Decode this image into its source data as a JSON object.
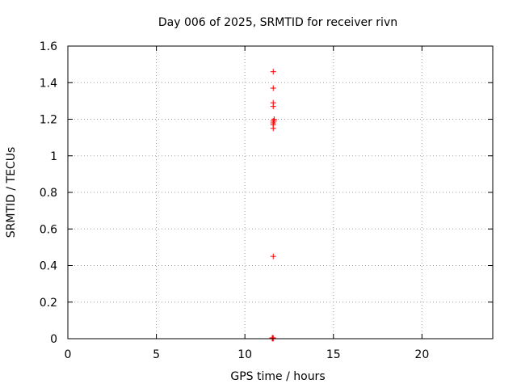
{
  "chart_data": {
    "type": "scatter",
    "title": "Day 006 of 2025, SRMTID for receiver rivn",
    "xlabel": "GPS time / hours",
    "ylabel": "SRMTID / TECUs",
    "xlim": [
      0,
      24
    ],
    "ylim": [
      0,
      1.6
    ],
    "x_ticks": [
      0,
      5,
      10,
      15,
      20
    ],
    "x_tick_labels": [
      "0",
      "5",
      "10",
      "15",
      "20"
    ],
    "y_ticks": [
      0,
      0.2,
      0.4,
      0.6,
      0.8,
      1.0,
      1.2,
      1.4,
      1.6
    ],
    "y_tick_labels": [
      "0",
      "0.2",
      "0.4",
      "0.6",
      "0.8",
      "1",
      "1.2",
      "1.4",
      "1.6"
    ],
    "grid": true,
    "marker": "+",
    "color": "#ff0000",
    "series": [
      {
        "name": "SRMTID",
        "x": [
          11.6,
          11.6,
          11.6,
          11.6,
          11.65,
          11.6,
          11.65,
          11.6,
          11.6,
          11.6,
          11.6,
          11.58,
          11.55,
          11.6,
          11.55,
          11.6,
          11.55
        ],
        "y": [
          1.46,
          1.37,
          1.29,
          1.27,
          1.2,
          1.19,
          1.19,
          1.18,
          1.17,
          1.15,
          0.45,
          0.005,
          0.003,
          0.002,
          0.0,
          0.001,
          0.004
        ]
      }
    ]
  }
}
